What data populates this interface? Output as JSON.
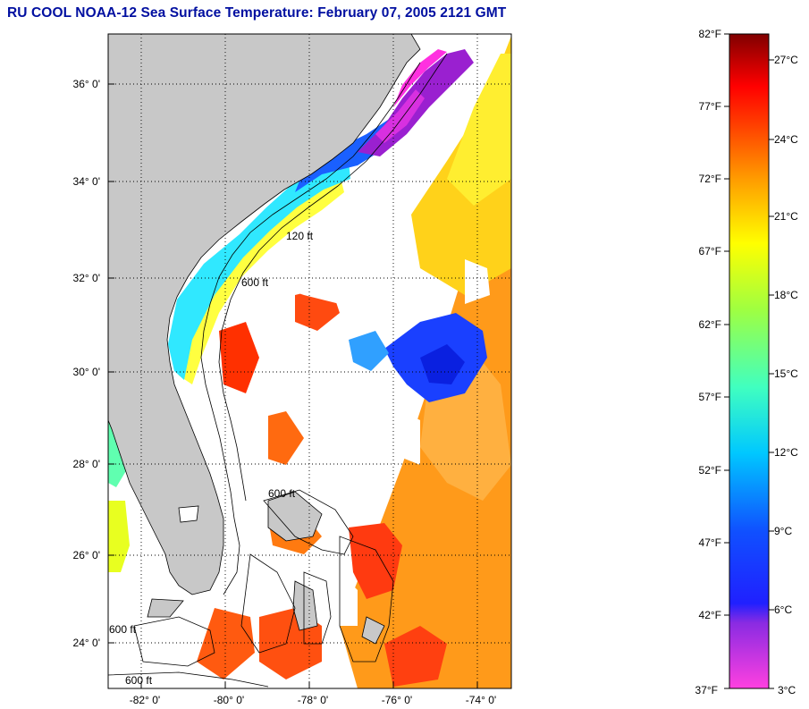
{
  "title": "RU COOL  NOAA-12  Sea Surface Temperature:  February 07, 2005 2121 GMT",
  "map": {
    "lat_labels": [
      "36° 0'",
      "34° 0'",
      "32° 0'",
      "30° 0'",
      "28° 0'",
      "26° 0'",
      "24° 0'"
    ],
    "lon_labels": [
      "-82° 0'",
      "-80° 0'",
      "-78° 0'",
      "-76° 0'",
      "-74° 0'"
    ],
    "contour_labels": [
      "120 ft",
      "600 ft",
      "600 ft",
      "600 ft",
      "600 ft"
    ],
    "colors": {
      "land": "#c8c8c8",
      "ocean_cloud": "#ffffff"
    }
  },
  "colorbar": {
    "fahrenheit_labels": [
      "82°F",
      "77°F",
      "72°F",
      "67°F",
      "62°F",
      "57°F",
      "52°F",
      "47°F",
      "42°F",
      "37°F"
    ],
    "celsius_labels": [
      "27°C",
      "24°C",
      "21°C",
      "18°C",
      "15°C",
      "12°C",
      "9°C",
      "6°C",
      "3°C"
    ]
  }
}
